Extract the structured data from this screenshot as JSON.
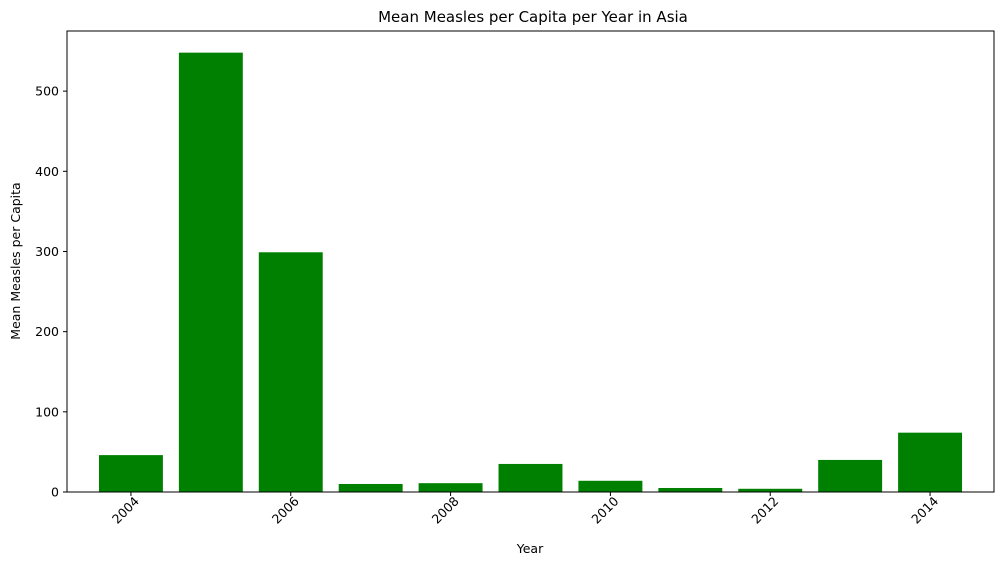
{
  "chart_data": {
    "type": "bar",
    "title": "Mean Measles per Capita per Year in Asia",
    "xlabel": "Year",
    "ylabel": "Mean Measles per Capita",
    "x": [
      2004,
      2005,
      2006,
      2007,
      2008,
      2009,
      2010,
      2011,
      2012,
      2013,
      2014
    ],
    "values": [
      46,
      548,
      299,
      10,
      11,
      35,
      14,
      5,
      4,
      40,
      74
    ],
    "xticks": [
      "2004",
      "2006",
      "2008",
      "2010",
      "2012",
      "2014"
    ],
    "yticks": [
      "0",
      "100",
      "200",
      "300",
      "400",
      "500"
    ],
    "xlim": [
      2003.2,
      2014.8
    ],
    "ylim": [
      0,
      575
    ],
    "bar_color": "#008000",
    "grid": false,
    "legend": "none"
  }
}
